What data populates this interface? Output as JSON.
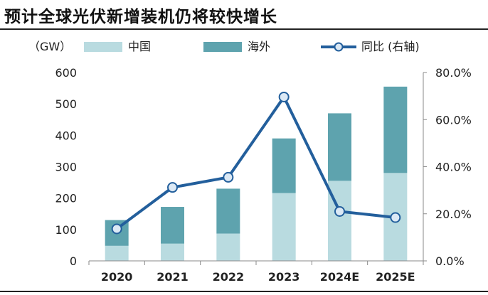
{
  "header": {
    "title": "预计全球光伏新增装机仍将较快增长"
  },
  "chart_data": {
    "type": "bar",
    "stacked": true,
    "unit_label": "（GW）",
    "categories": [
      "2020",
      "2021",
      "2022",
      "2023",
      "2024E",
      "2025E"
    ],
    "series": [
      {
        "name": "中国",
        "values": [
          48,
          55,
          87,
          216,
          255,
          280
        ],
        "color": "#b9dbe0"
      },
      {
        "name": "海外",
        "values": [
          82,
          117,
          143,
          174,
          215,
          275
        ],
        "color": "#5ea3ae"
      }
    ],
    "line_series": {
      "name": "同比 (右轴)",
      "values": [
        13.6,
        31.2,
        35.5,
        69.6,
        21.0,
        18.4
      ],
      "color": "#235f9c",
      "axis": "right"
    },
    "y_left": {
      "min": 0,
      "max": 600,
      "ticks": [
        "0",
        "100",
        "200",
        "300",
        "400",
        "500",
        "600"
      ]
    },
    "y_right": {
      "min": 0,
      "max": 80,
      "ticks": [
        "0.0%",
        "20.0%",
        "40.0%",
        "60.0%",
        "80.0%"
      ]
    },
    "grid": false,
    "legend": "top"
  }
}
